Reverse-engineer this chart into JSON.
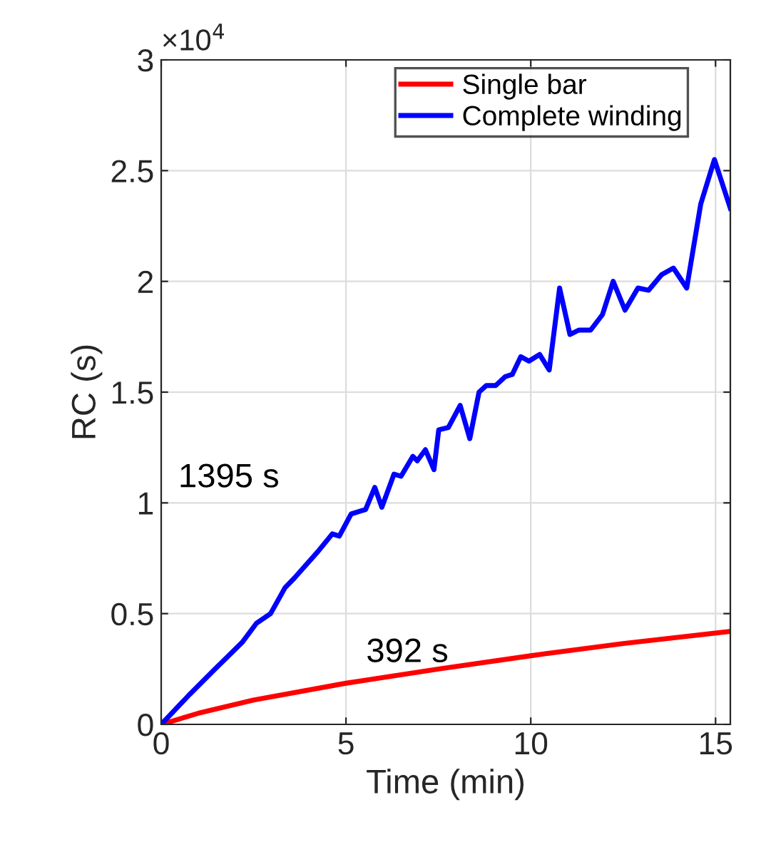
{
  "chart_data": {
    "type": "line",
    "xlabel": "Time (min)",
    "ylabel": "RC (s)",
    "xlim": [
      0,
      15.4
    ],
    "ylim": [
      0,
      3
    ],
    "xticks": [
      0,
      5,
      10,
      15
    ],
    "yticks": [
      0,
      0.5,
      1,
      1.5,
      2,
      2.5,
      3
    ],
    "grid": true,
    "legend": "top right",
    "line_style": "solid",
    "marker": "none",
    "annotations": [
      "×10$^{4}$",
      "1395 s",
      "392 s"
    ],
    "series": [
      {
        "name": "Single bar",
        "color": "#ff0000",
        "x": [
          0,
          1,
          2.5,
          5,
          7.5,
          10,
          12.5,
          15.4
        ],
        "values": [
          0,
          0.05,
          0.11,
          0.186,
          0.25,
          0.31,
          0.365,
          0.42
        ]
      },
      {
        "name": "Complete winding",
        "color": "#0000ff",
        "x": [
          0,
          0.78,
          1.42,
          2.19,
          2.58,
          2.96,
          3.35,
          3.6,
          4.24,
          4.63,
          4.82,
          5.14,
          5.53,
          5.78,
          5.97,
          6.3,
          6.49,
          6.81,
          6.93,
          7.15,
          7.38,
          7.51,
          7.77,
          8.09,
          8.35,
          8.6,
          8.8,
          9.05,
          9.31,
          9.5,
          9.73,
          9.95,
          10.24,
          10.5,
          10.78,
          11.06,
          11.3,
          11.62,
          11.94,
          12.23,
          12.55,
          12.9,
          13.19,
          13.54,
          13.86,
          14.22,
          14.6,
          14.97,
          15.4
        ],
        "values": [
          0,
          0.137,
          0.244,
          0.37,
          0.457,
          0.5,
          0.617,
          0.66,
          0.78,
          0.86,
          0.85,
          0.95,
          0.97,
          1.07,
          0.98,
          1.13,
          1.12,
          1.21,
          1.19,
          1.24,
          1.15,
          1.33,
          1.34,
          1.44,
          1.29,
          1.5,
          1.53,
          1.53,
          1.57,
          1.58,
          1.66,
          1.64,
          1.67,
          1.6,
          1.97,
          1.76,
          1.78,
          1.78,
          1.85,
          2.0,
          1.87,
          1.97,
          1.96,
          2.03,
          2.06,
          1.97,
          2.35,
          2.55,
          2.33
        ]
      }
    ]
  }
}
